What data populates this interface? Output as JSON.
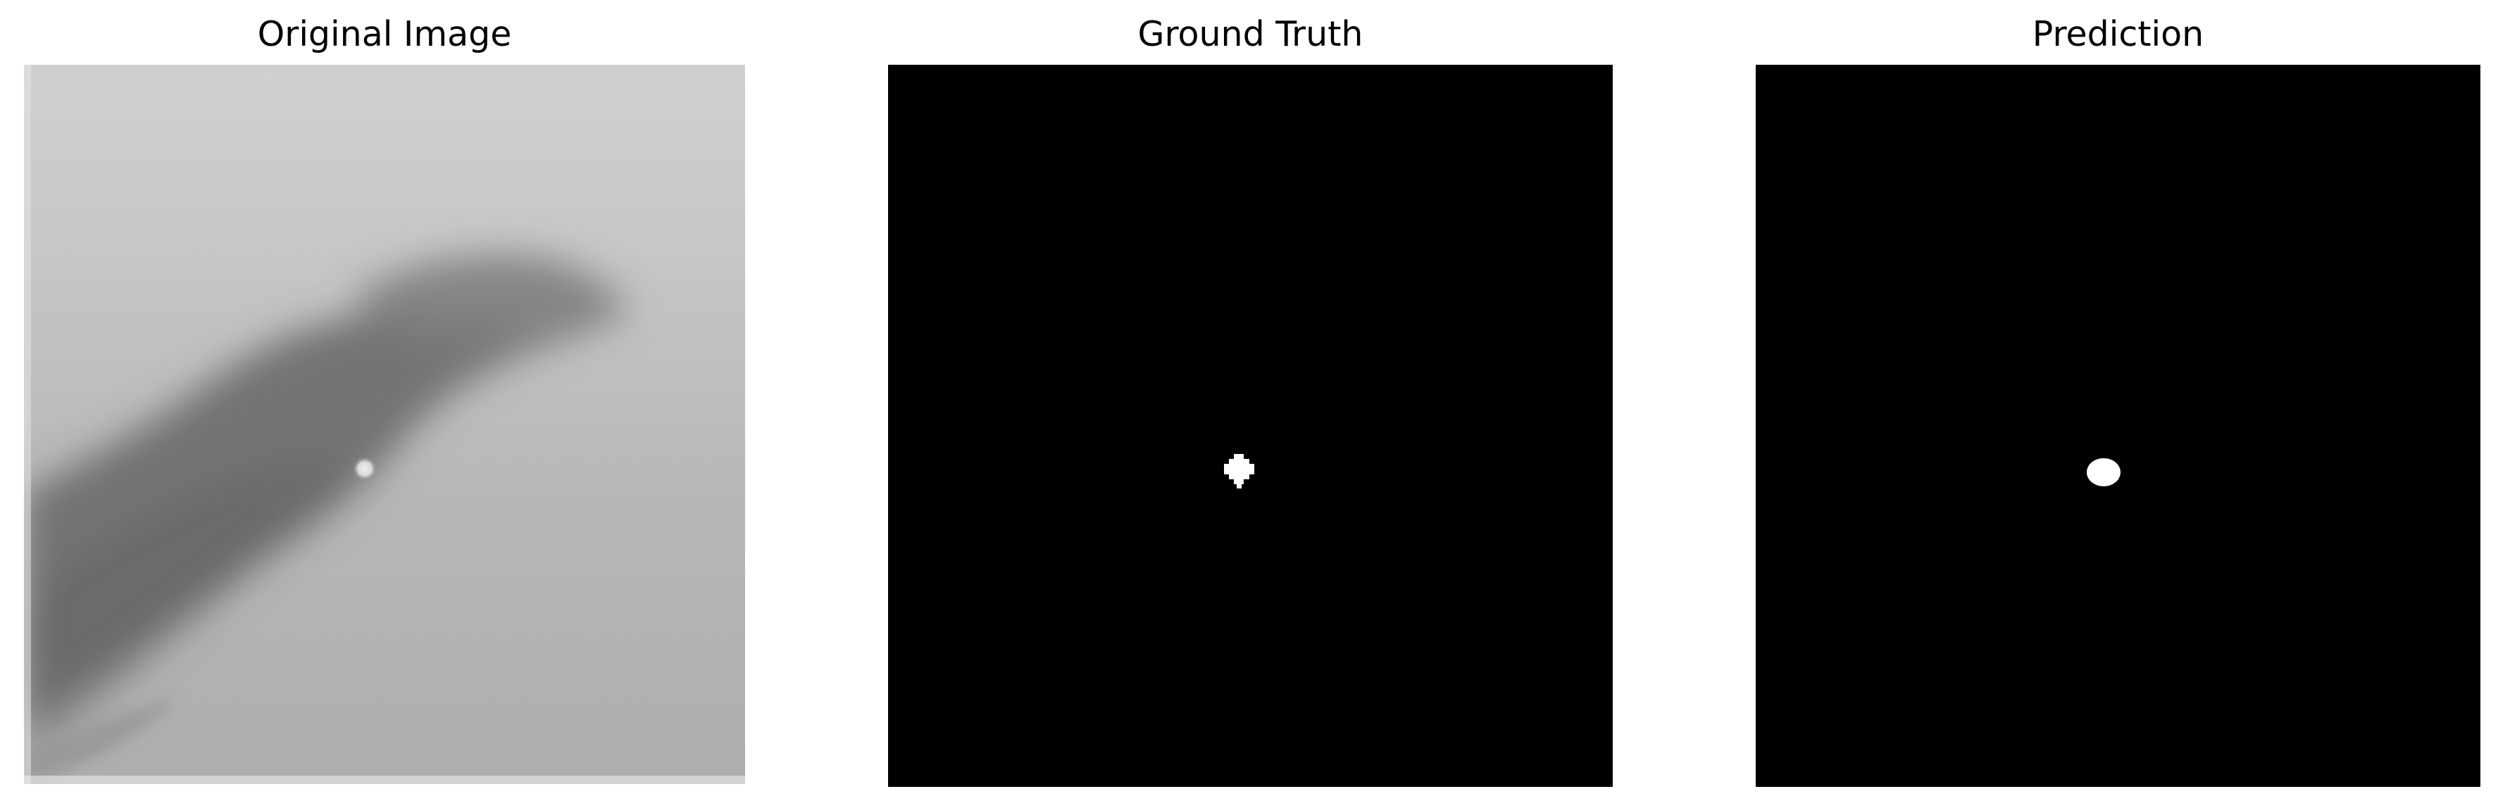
{
  "figure": {
    "panels": [
      {
        "title": "Original Image"
      },
      {
        "title": "Ground Truth"
      },
      {
        "title": "Prediction"
      }
    ]
  },
  "colors": {
    "background": "#ffffff",
    "mask_background": "#000000",
    "mask_foreground": "#ffffff",
    "grayscale_base": "#bdbdbd"
  }
}
